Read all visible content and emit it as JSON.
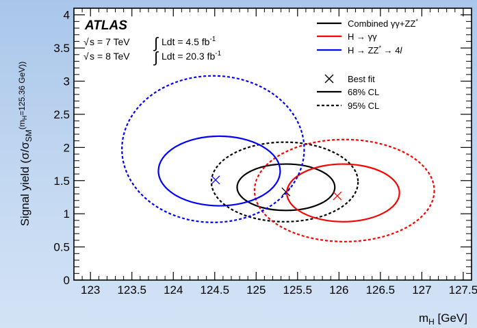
{
  "chart_data": {
    "type": "contour",
    "experiment_label": "ATLAS",
    "energy_lines": [
      {
        "sqrt": "s",
        "energy": "= 7 TeV",
        "lumi": "Ldt = 4.5 fb",
        "exp": "-1"
      },
      {
        "sqrt": "s",
        "energy": "= 8 TeV",
        "lumi": "Ldt = 20.3 fb",
        "exp": "-1"
      }
    ],
    "xlabel": {
      "main": "m",
      "sub": "H",
      "unit": " [GeV]"
    },
    "ylabel": {
      "main": "Signal yield (σ/σ",
      "sub": "SM",
      "paren": "(m",
      "sub2": "H",
      "value": "=125.36 GeV))"
    },
    "xlim": [
      122.8,
      127.6
    ],
    "ylim": [
      0,
      4.1
    ],
    "x_ticks": [
      "123",
      "123.5",
      "124",
      "124.5",
      "125",
      "125.5",
      "126",
      "126.5",
      "127",
      "127.5"
    ],
    "y_ticks": [
      "0",
      "0.5",
      "1",
      "1.5",
      "2",
      "2.5",
      "3",
      "3.5",
      "4"
    ],
    "series": [
      {
        "name": "Combined γγ+ZZ*",
        "color": "#000000",
        "best_fit": [
          125.36,
          1.33
        ],
        "cl68": {
          "xmin": 124.77,
          "xmax": 125.95,
          "ymin": 1.05,
          "ymax": 1.75
        },
        "cl95": {
          "xmin": 124.46,
          "xmax": 126.23,
          "ymin": 0.88,
          "ymax": 2.08
        }
      },
      {
        "name": "H → γγ",
        "color": "#ff0000",
        "best_fit": [
          125.98,
          1.27
        ],
        "cl68": {
          "xmin": 125.37,
          "xmax": 126.73,
          "ymin": 0.88,
          "ymax": 1.75
        },
        "cl95": {
          "xmin": 124.98,
          "xmax": 127.15,
          "ymin": 0.58,
          "ymax": 2.12
        }
      },
      {
        "name": "H → ZZ* → 4l",
        "color": "#0000ff",
        "best_fit": [
          124.51,
          1.51
        ],
        "cl68": {
          "xmin": 123.82,
          "xmax": 125.29,
          "ymin": 1.12,
          "ymax": 2.17
        },
        "cl95": {
          "xmin": 123.38,
          "xmax": 125.58,
          "ymin": 0.87,
          "ymax": 3.08
        }
      }
    ],
    "legend": {
      "entries": [
        {
          "label": "Combined γγ+ZZ",
          "sup": "*",
          "color": "#000000",
          "style": "line"
        },
        {
          "label": "H → γγ",
          "sup": "",
          "color": "#ff0000",
          "style": "line"
        },
        {
          "label": "H → ZZ",
          "sup": "*",
          "tail": " → 4",
          "italic": "l",
          "color": "#0000ff",
          "style": "line"
        },
        {
          "label": "Best fit",
          "sup": "",
          "color": "#000000",
          "style": "cross"
        },
        {
          "label": "68% CL",
          "sup": "",
          "color": "#000000",
          "style": "line"
        },
        {
          "label": "95% CL",
          "sup": "",
          "color": "#000000",
          "style": "dash"
        }
      ],
      "position": "top-right"
    }
  }
}
